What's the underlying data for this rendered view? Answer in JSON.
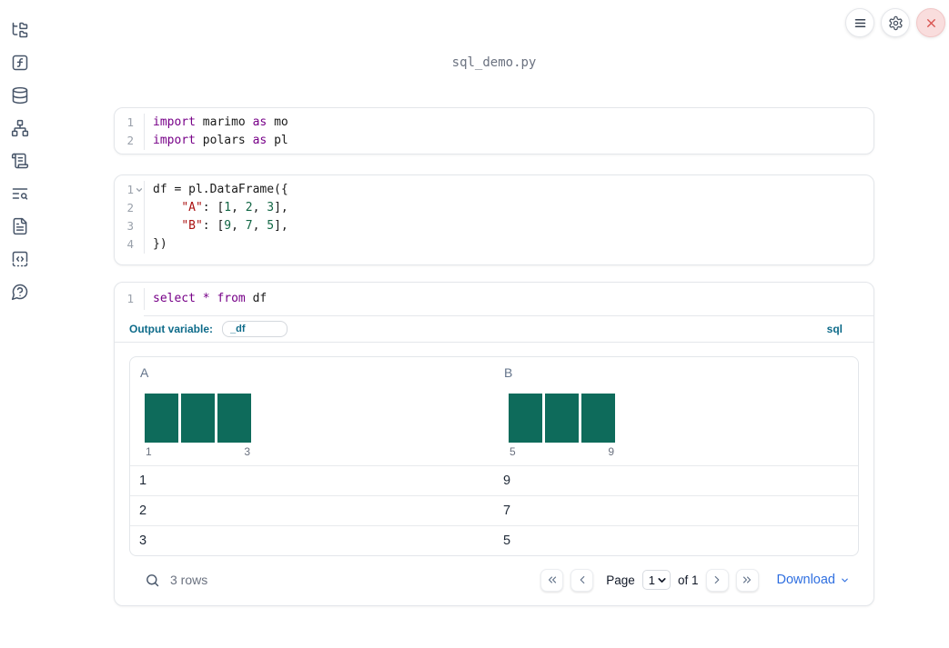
{
  "window": {
    "title": "sql_demo.py"
  },
  "colors": {
    "keyword": "#770088",
    "string": "#aa1111",
    "number": "#116644",
    "histogram_bar": "#0e6b5b",
    "teal_label": "#0e6b8a",
    "link_blue": "#2f6fe0",
    "sidebar_icon": "#475569",
    "close_red": "#d9534f"
  },
  "topbar": {
    "buttons": [
      {
        "name": "menu"
      },
      {
        "name": "settings"
      },
      {
        "name": "close"
      }
    ]
  },
  "sidebar": {
    "items": [
      {
        "icon": "file-tree-icon"
      },
      {
        "icon": "function-square-icon"
      },
      {
        "icon": "database-icon"
      },
      {
        "icon": "dependency-graph-icon"
      },
      {
        "icon": "scroll-logs-icon"
      },
      {
        "icon": "list-search-icon"
      },
      {
        "icon": "document-icon"
      },
      {
        "icon": "code-snippets-icon"
      },
      {
        "icon": "help-icon"
      }
    ]
  },
  "cells": [
    {
      "type": "python",
      "lines": [
        {
          "n": "1",
          "tokens": [
            {
              "t": "import",
              "c": "kw"
            },
            {
              "t": " marimo ",
              "c": ""
            },
            {
              "t": "as",
              "c": "kw"
            },
            {
              "t": " mo",
              "c": ""
            }
          ]
        },
        {
          "n": "2",
          "tokens": [
            {
              "t": "import",
              "c": "kw"
            },
            {
              "t": " polars ",
              "c": ""
            },
            {
              "t": "as",
              "c": "kw"
            },
            {
              "t": " pl",
              "c": ""
            }
          ]
        }
      ]
    },
    {
      "type": "python",
      "lines": [
        {
          "n": "1",
          "fold": true,
          "tokens": [
            {
              "t": "df = pl.DataFrame({",
              "c": ""
            }
          ]
        },
        {
          "n": "2",
          "tokens": [
            {
              "t": "    ",
              "c": ""
            },
            {
              "t": "\"A\"",
              "c": "str"
            },
            {
              "t": ": [",
              "c": ""
            },
            {
              "t": "1",
              "c": "num"
            },
            {
              "t": ", ",
              "c": ""
            },
            {
              "t": "2",
              "c": "num"
            },
            {
              "t": ", ",
              "c": ""
            },
            {
              "t": "3",
              "c": "num"
            },
            {
              "t": "],",
              "c": ""
            }
          ]
        },
        {
          "n": "3",
          "tokens": [
            {
              "t": "    ",
              "c": ""
            },
            {
              "t": "\"B\"",
              "c": "str"
            },
            {
              "t": ": [",
              "c": ""
            },
            {
              "t": "9",
              "c": "num"
            },
            {
              "t": ", ",
              "c": ""
            },
            {
              "t": "7",
              "c": "num"
            },
            {
              "t": ", ",
              "c": ""
            },
            {
              "t": "5",
              "c": "num"
            },
            {
              "t": "],",
              "c": ""
            }
          ]
        },
        {
          "n": "4",
          "tokens": [
            {
              "t": "})",
              "c": ""
            }
          ]
        }
      ]
    },
    {
      "type": "sql",
      "lines": [
        {
          "n": "1",
          "tokens": [
            {
              "t": "select",
              "c": "kw"
            },
            {
              "t": " ",
              "c": ""
            },
            {
              "t": "*",
              "c": "kw"
            },
            {
              "t": " ",
              "c": ""
            },
            {
              "t": "from",
              "c": "kw"
            },
            {
              "t": " df",
              "c": ""
            }
          ]
        }
      ],
      "output_variable_label": "Output variable:",
      "output_variable_value": "_df",
      "language_badge": "sql"
    }
  ],
  "table": {
    "columns": [
      {
        "label": "A",
        "histogram": {
          "bars": [
            1,
            1,
            1
          ],
          "min_label": "1",
          "max_label": "3"
        }
      },
      {
        "label": "B",
        "histogram": {
          "bars": [
            1,
            1,
            1
          ],
          "min_label": "5",
          "max_label": "9"
        }
      }
    ],
    "rows": [
      [
        "1",
        "9"
      ],
      [
        "2",
        "7"
      ],
      [
        "3",
        "5"
      ]
    ],
    "footer": {
      "row_count": "3 rows",
      "page_label": "Page",
      "page_value": "1",
      "of_label": "of 1",
      "download_label": "Download"
    }
  }
}
